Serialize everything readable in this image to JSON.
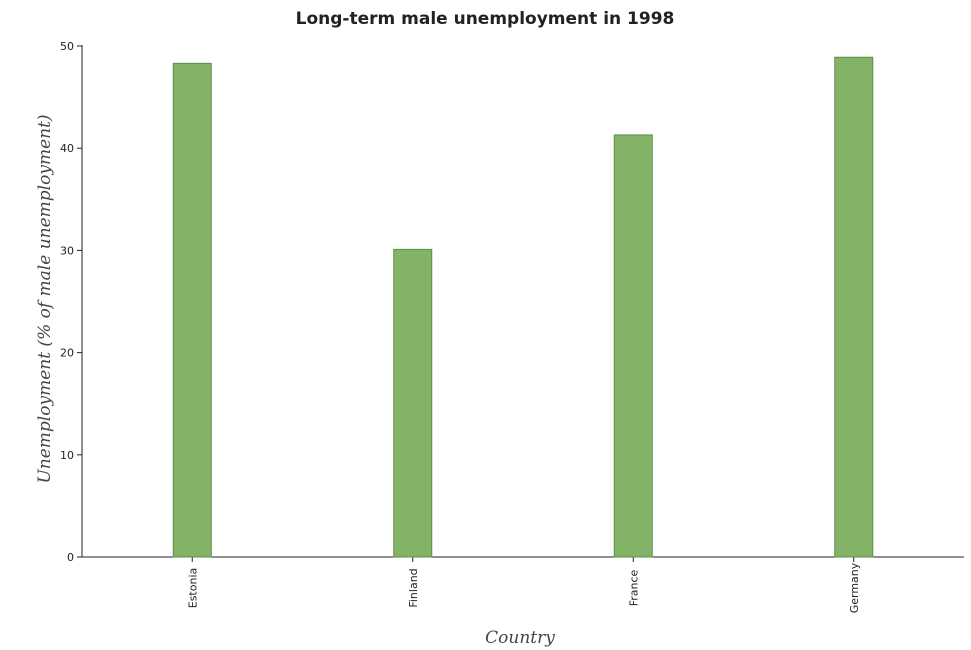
{
  "chart_data": {
    "type": "bar",
    "title": "Long-term male unemployment in 1998",
    "xlabel": "Country",
    "ylabel": "Unemployment (% of male unemployment)",
    "categories": [
      "Estonia",
      "Finland",
      "France",
      "Germany"
    ],
    "values": [
      48.3,
      30.1,
      41.3,
      48.9
    ],
    "ylim": [
      0,
      50
    ],
    "yticks": [
      0,
      10,
      20,
      30,
      40,
      50
    ],
    "grid": false,
    "colors": {
      "bar": "#82b366",
      "bar_edge": "#5e8f46"
    }
  }
}
